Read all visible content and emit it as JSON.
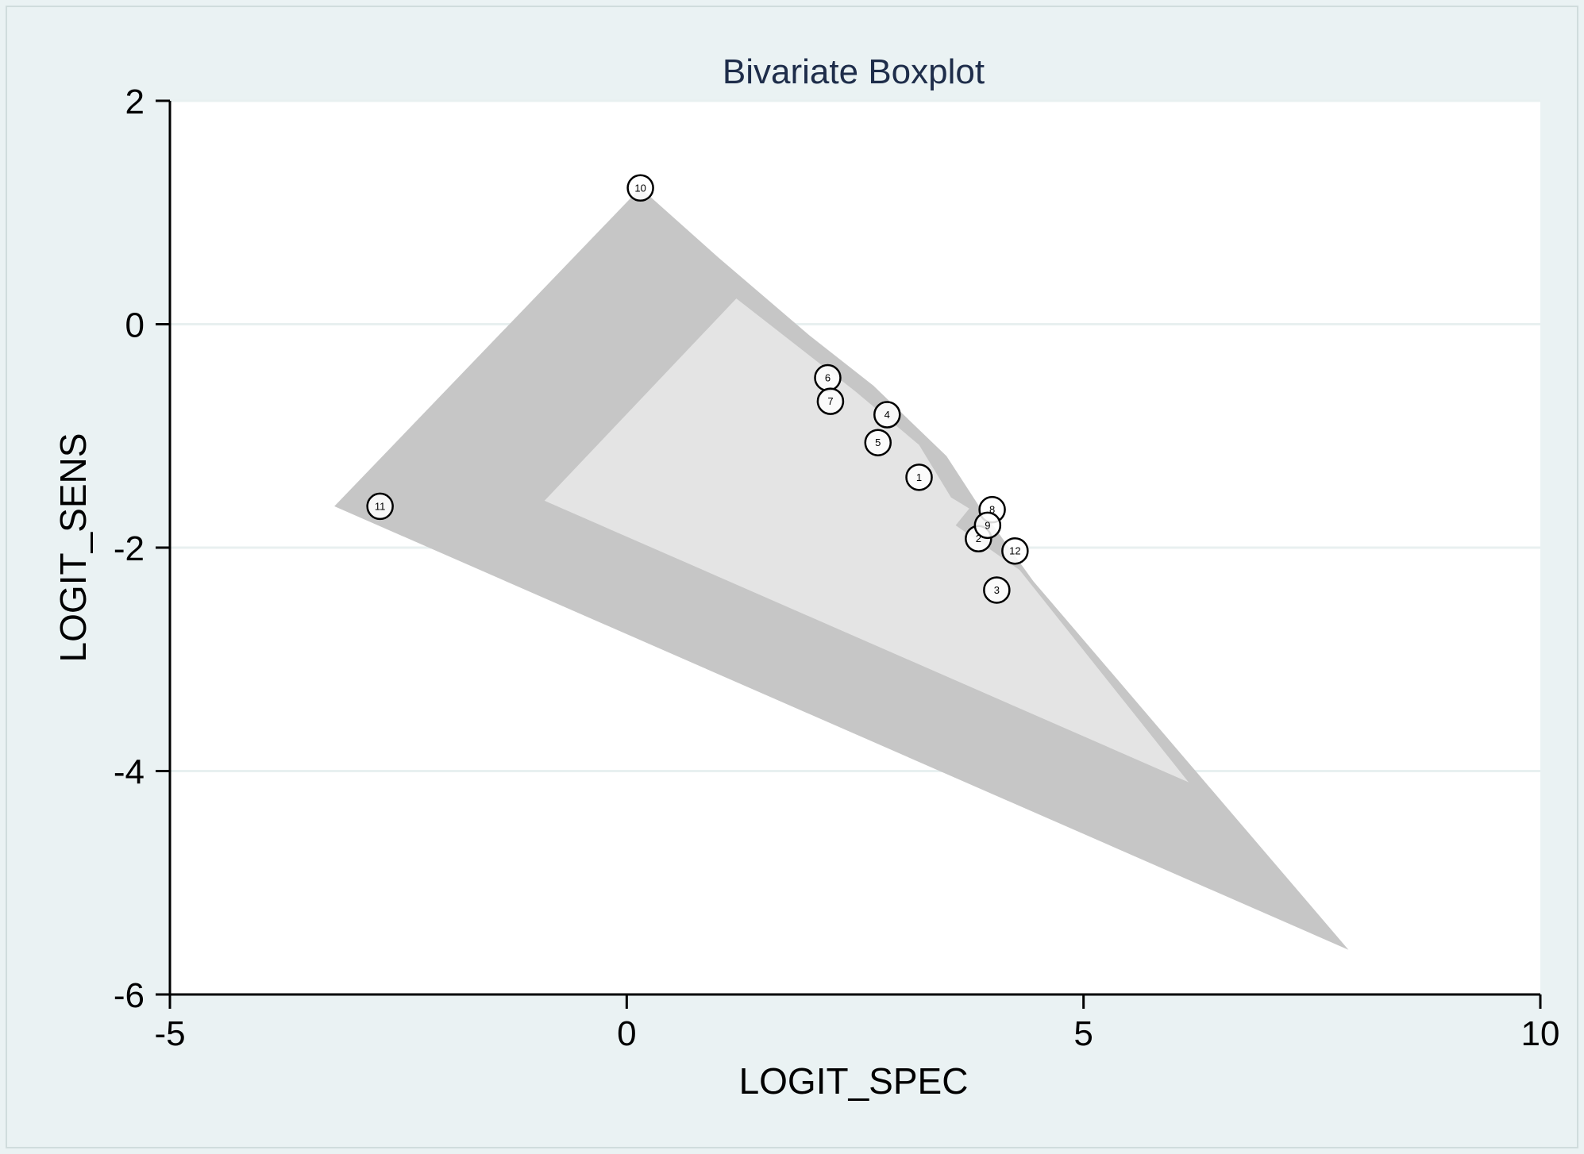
{
  "chart_data": {
    "type": "scatter",
    "title": "Bivariate Boxplot",
    "xlabel": "LOGIT_SPEC",
    "ylabel": "LOGIT_SENS",
    "xlim": [
      -5,
      10
    ],
    "ylim": [
      -6,
      2
    ],
    "xticks": [
      -5,
      0,
      5,
      10
    ],
    "yticks": [
      -6,
      -4,
      -2,
      0,
      2
    ],
    "xtick_labels": [
      "-5",
      "0",
      "5",
      "10"
    ],
    "ytick_labels": [
      "-6",
      "-4",
      "-2",
      "0",
      "2"
    ],
    "grid": "horizontal",
    "points": [
      {
        "label": "1",
        "x": 3.2,
        "y": -1.37
      },
      {
        "label": "2",
        "x": 3.85,
        "y": -1.92
      },
      {
        "label": "3",
        "x": 4.05,
        "y": -2.38
      },
      {
        "label": "4",
        "x": 2.85,
        "y": -0.81
      },
      {
        "label": "5",
        "x": 2.75,
        "y": -1.06
      },
      {
        "label": "6",
        "x": 2.2,
        "y": -0.48
      },
      {
        "label": "7",
        "x": 2.23,
        "y": -0.69
      },
      {
        "label": "8",
        "x": 4.0,
        "y": -1.66
      },
      {
        "label": "9",
        "x": 3.95,
        "y": -1.8
      },
      {
        "label": "10",
        "x": 0.15,
        "y": 1.22
      },
      {
        "label": "11",
        "x": -2.7,
        "y": -1.63
      },
      {
        "label": "12",
        "x": 4.25,
        "y": -2.03
      }
    ],
    "fence_region": [
      [
        0.15,
        1.22
      ],
      [
        1.0,
        0.6
      ],
      [
        2.0,
        -0.1
      ],
      [
        2.7,
        -0.55
      ],
      [
        3.5,
        -1.18
      ],
      [
        3.85,
        -1.62
      ],
      [
        4.45,
        -2.3
      ],
      [
        7.9,
        -5.6
      ],
      [
        -3.2,
        -1.63
      ]
    ],
    "hinge_region": [
      [
        1.2,
        0.23
      ],
      [
        2.5,
        -0.6
      ],
      [
        3.2,
        -1.08
      ],
      [
        3.55,
        -1.55
      ],
      [
        3.75,
        -1.65
      ],
      [
        3.6,
        -1.8
      ],
      [
        4.3,
        -2.2
      ],
      [
        6.15,
        -4.1
      ],
      [
        -0.9,
        -1.58
      ]
    ],
    "colors": {
      "plot_background": "#ffffff",
      "outer_background": "#eaf2f3",
      "fence_fill": "#c6c6c6",
      "hinge_fill": "#e4e4e4",
      "gridline": "#e8f0f0",
      "axis": "#000000",
      "title": "#1e2d4a"
    }
  }
}
